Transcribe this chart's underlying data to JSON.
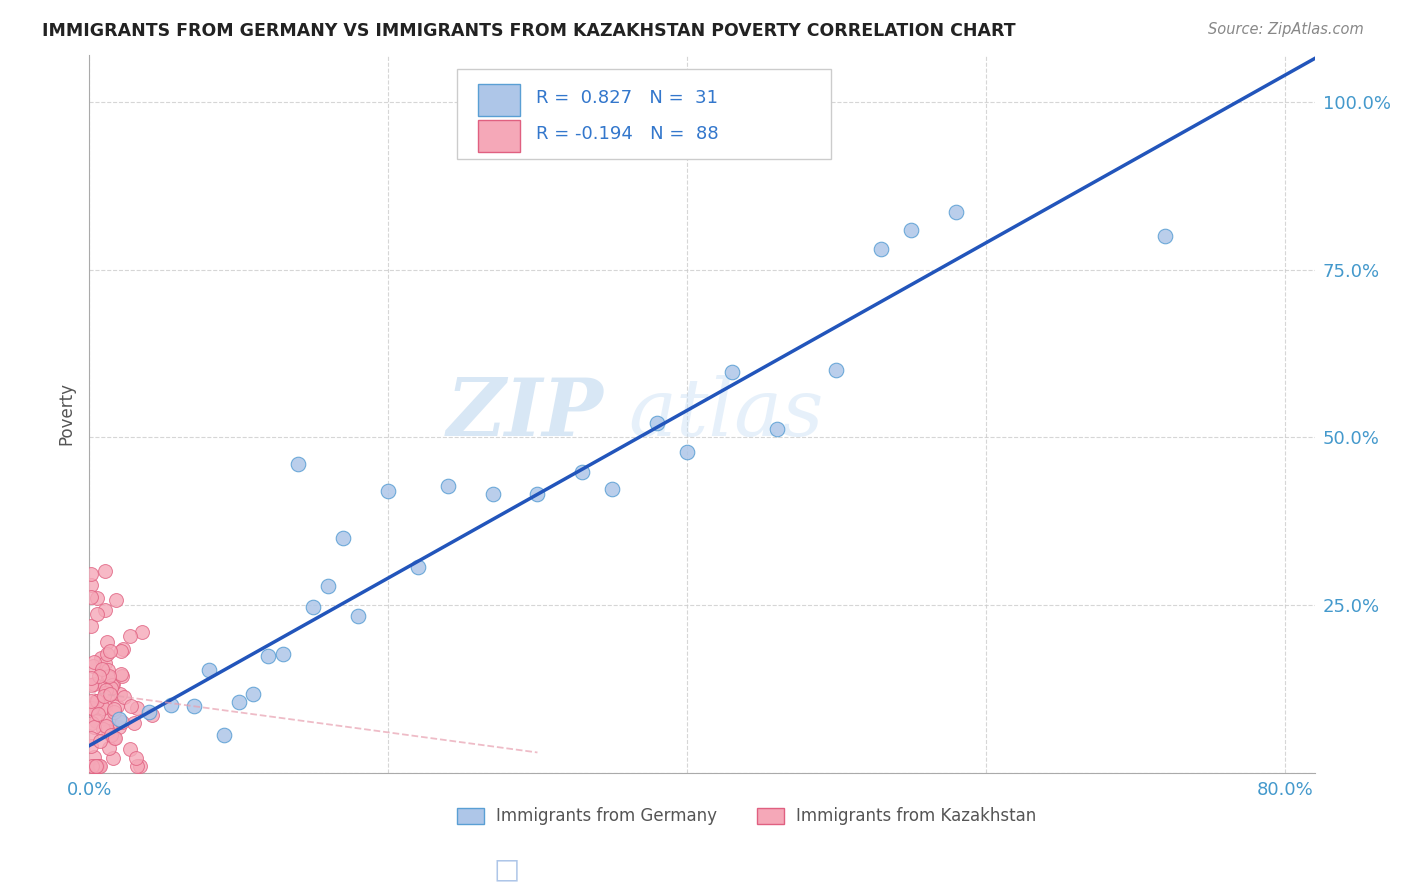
{
  "title": "IMMIGRANTS FROM GERMANY VS IMMIGRANTS FROM KAZAKHSTAN POVERTY CORRELATION CHART",
  "source": "Source: ZipAtlas.com",
  "xlabel_germany": "Immigrants from Germany",
  "xlabel_kazakhstan": "Immigrants from Kazakhstan",
  "ylabel": "Poverty",
  "r_germany": 0.827,
  "n_germany": 31,
  "r_kazakhstan": -0.194,
  "n_kazakhstan": 88,
  "germany_color": "#aec6e8",
  "germany_edge": "#5a9fd4",
  "kazakhstan_color": "#f5a8b8",
  "kazakhstan_edge": "#e06080",
  "regression_germany_color": "#2255bb",
  "regression_kazakhstan_color": "#e8a0b0",
  "legend_r_color": "#3377cc",
  "tick_color": "#4499cc",
  "watermark_zip": "ZIP",
  "watermark_atlas": "atlas",
  "ylabel_color": "#555555",
  "title_color": "#222222",
  "source_color": "#888888",
  "legend_text_color": "#555555",
  "grid_color": "#cccccc",
  "spine_color": "#aaaaaa"
}
